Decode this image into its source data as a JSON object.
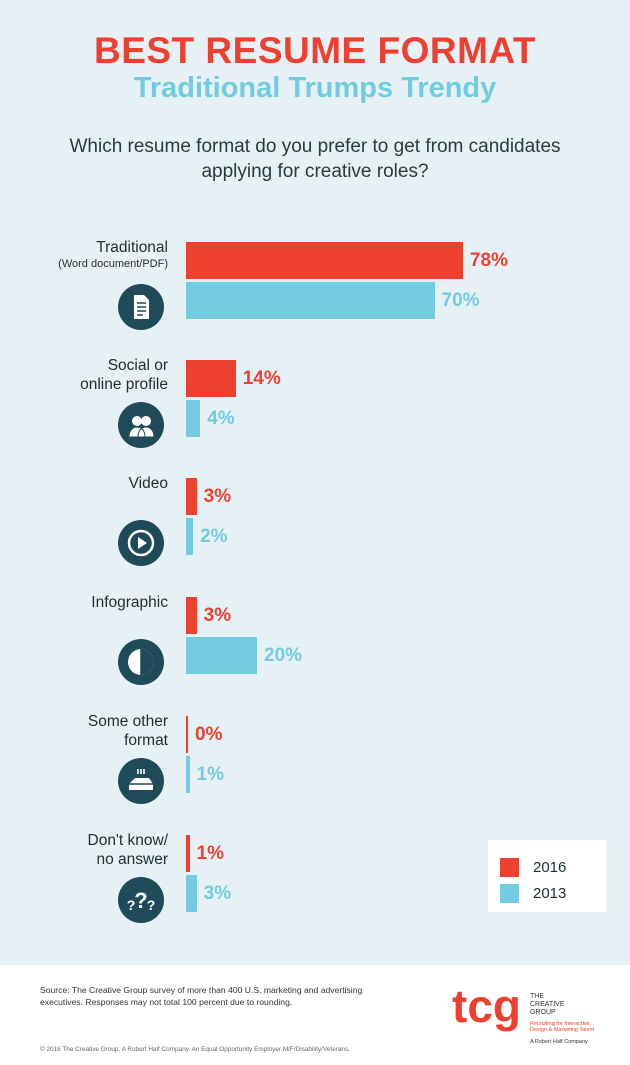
{
  "colors": {
    "red": "#ee4030",
    "blue": "#72cbe0",
    "icon": "#1f4a57",
    "title_red": "#ee4030",
    "title_blue": "#72cbe0"
  },
  "header": {
    "title": "BEST RESUME FORMAT",
    "subtitle": "Traditional Trumps Trendy",
    "question": "Which resume format do you prefer to get from candidates applying for creative roles?"
  },
  "chart_data": {
    "type": "bar",
    "orientation": "horizontal",
    "categories": [
      "Traditional",
      "Social or online profile",
      "Video",
      "Infographic",
      "Some other format",
      "Don't know/ no answer"
    ],
    "category_sublabels": [
      "(Word document/PDF)",
      "",
      "",
      "",
      "",
      ""
    ],
    "category_lines": [
      [
        "Traditional"
      ],
      [
        "Social or",
        "online profile"
      ],
      [
        "Video"
      ],
      [
        "Infographic"
      ],
      [
        "Some other",
        "format"
      ],
      [
        "Don't know/",
        "no answer"
      ]
    ],
    "icons": [
      "document-icon",
      "people-icon",
      "play-icon",
      "pie-icon",
      "scanner-icon",
      "question-icon"
    ],
    "series": [
      {
        "name": "2016",
        "values": [
          78,
          14,
          3,
          3,
          0,
          1
        ],
        "labels": [
          "78%",
          "14%",
          "3%",
          "3%",
          "0%",
          "1%"
        ]
      },
      {
        "name": "2013",
        "values": [
          70,
          4,
          2,
          20,
          1,
          3
        ],
        "labels": [
          "70%",
          "4%",
          "2%",
          "20%",
          "1%",
          "3%"
        ]
      }
    ],
    "xlim": [
      0,
      100
    ],
    "legend_position": "bottom-right"
  },
  "footer": {
    "source": "Source: The Creative Group survey of more than 400 U.S. marketing and advertising executives. Responses may not total 100 percent due to rounding.",
    "copyright": "© 2016 The Creative Group. A Robert Half Company. An Equal Opportunity Employer M/F/Disability/Veterans.",
    "logo_text": "tcg",
    "logo_name_1": "THE",
    "logo_name_2": "CREATIVE",
    "logo_name_3": "GROUP",
    "logo_tag_1": "Recruiting for Interactive,",
    "logo_tag_2": "Design & Marketing Talent",
    "logo_parent": "A Robert Half Company"
  }
}
